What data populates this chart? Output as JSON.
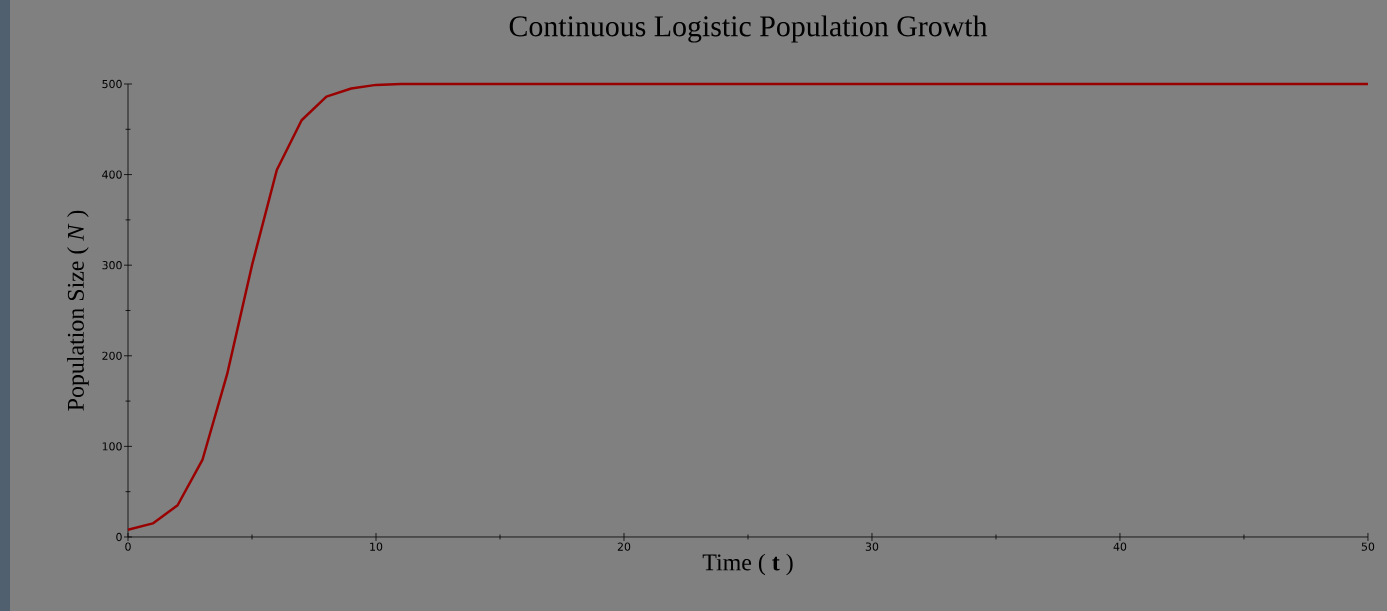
{
  "chart_data": {
    "type": "line",
    "title": "Continuous Logistic Population Growth",
    "xlabel": "Time ( **t** )",
    "ylabel": "Population Size ( *N* )",
    "x": [
      0,
      1,
      2,
      3,
      4,
      5,
      6,
      7,
      8,
      9,
      10,
      11,
      50
    ],
    "series": [
      {
        "color": "#990000",
        "values": [
          8,
          15,
          35,
          85,
          180,
          300,
          405,
          460,
          486,
          495,
          499,
          500,
          500
        ]
      }
    ],
    "xlim": [
      0,
      50
    ],
    "ylim": [
      0,
      500
    ],
    "xticks": [
      0,
      10,
      20,
      30,
      40,
      50
    ],
    "yticks": [
      0,
      100,
      200,
      300,
      400,
      500
    ],
    "grid": false,
    "marker": "none",
    "line_style": "solid"
  }
}
